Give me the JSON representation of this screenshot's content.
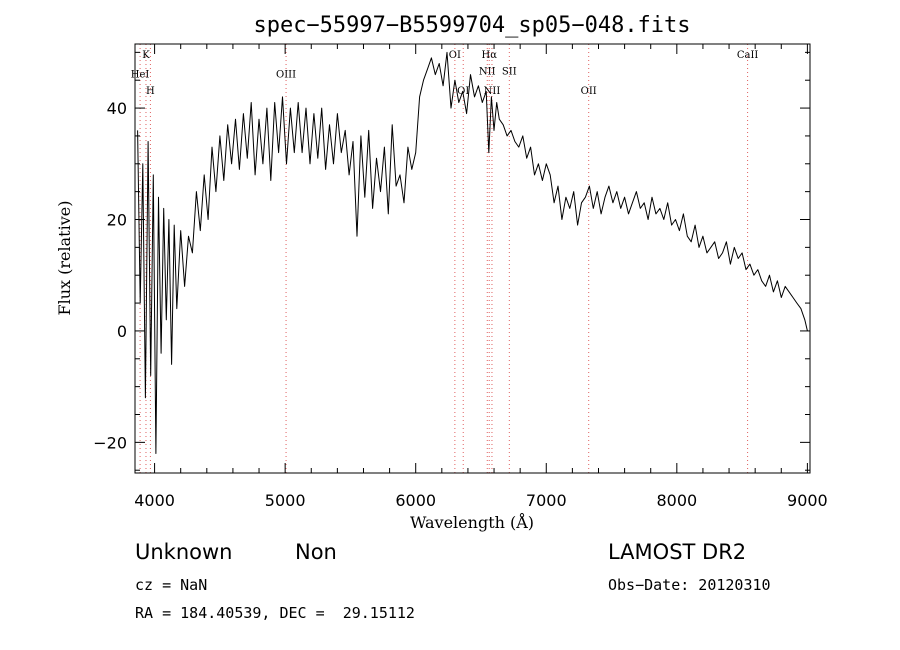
{
  "chart_data": {
    "type": "line",
    "title": "spec−55997−B5599704_sp05−048.fits",
    "xlabel": "Wavelength (Å)",
    "ylabel": "Flux (relative)",
    "xlim": [
      3850,
      9020
    ],
    "ylim": [
      -25.5,
      51.5
    ],
    "xticks": [
      4000,
      5000,
      6000,
      7000,
      8000,
      9000
    ],
    "xtick_labels": [
      "4000",
      "5000",
      "6000",
      "7000",
      "8000",
      "9000"
    ],
    "yticks": [
      -20,
      0,
      20,
      40
    ],
    "ytick_labels": [
      "−20",
      "0",
      "20",
      "40"
    ],
    "grid": false,
    "series": [
      {
        "x": [
          3870,
          3890,
          3910,
          3930,
          3950,
          3970,
          3990,
          4010,
          4030,
          4050,
          4070,
          4090,
          4110,
          4130,
          4150,
          4170,
          4200,
          4230,
          4260,
          4290,
          4320,
          4350,
          4380,
          4410,
          4440,
          4470,
          4500,
          4530,
          4560,
          4590,
          4620,
          4650,
          4680,
          4710,
          4740,
          4770,
          4800,
          4830,
          4860,
          4890,
          4920,
          4950,
          4980,
          5010,
          5040,
          5070,
          5100,
          5130,
          5160,
          5190,
          5220,
          5250,
          5280,
          5310,
          5340,
          5370,
          5400,
          5430,
          5460,
          5490,
          5520,
          5550,
          5580,
          5610,
          5640,
          5670,
          5700,
          5730,
          5760,
          5790,
          5820,
          5850,
          5880,
          5910,
          5940,
          5970,
          6000,
          6030,
          6060,
          6090,
          6120,
          6150,
          6180,
          6210,
          6240,
          6270,
          6300,
          6330,
          6360,
          6390,
          6420,
          6450,
          6480,
          6510,
          6540,
          6560,
          6580,
          6600,
          6620,
          6640,
          6670,
          6700,
          6730,
          6760,
          6790,
          6820,
          6850,
          6880,
          6910,
          6940,
          6970,
          7000,
          7030,
          7060,
          7090,
          7120,
          7150,
          7180,
          7210,
          7240,
          7270,
          7300,
          7330,
          7360,
          7390,
          7420,
          7450,
          7480,
          7510,
          7540,
          7570,
          7600,
          7630,
          7660,
          7690,
          7720,
          7750,
          7780,
          7810,
          7840,
          7870,
          7900,
          7930,
          7960,
          7990,
          8020,
          8050,
          8080,
          8110,
          8140,
          8170,
          8200,
          8230,
          8260,
          8290,
          8320,
          8350,
          8380,
          8410,
          8440,
          8470,
          8500,
          8530,
          8560,
          8590,
          8620,
          8650,
          8680,
          8710,
          8740,
          8770,
          8800,
          8830,
          8860,
          8890,
          8920,
          8950,
          8980,
          9000
        ],
        "y": [
          36,
          5,
          30,
          -12,
          34,
          -8,
          28,
          -22,
          24,
          -4,
          22,
          2,
          20,
          -6,
          19,
          4,
          18,
          8,
          17,
          14,
          25,
          18,
          28,
          20,
          33,
          25,
          35,
          27,
          37,
          30,
          38,
          29,
          39,
          31,
          41,
          28,
          38,
          30,
          40,
          27,
          41,
          32,
          42,
          30,
          40,
          32,
          41,
          32,
          40,
          30,
          39,
          31,
          40,
          29,
          37,
          30,
          39,
          32,
          36,
          28,
          34,
          17,
          35,
          24,
          36,
          22,
          31,
          25,
          33,
          21,
          37,
          26,
          28,
          23,
          33,
          29,
          32,
          42,
          45,
          47,
          49,
          46,
          48,
          44,
          50,
          40,
          45,
          41,
          43,
          39,
          46,
          42,
          44,
          41,
          43,
          32,
          42,
          36,
          41,
          38,
          37,
          35,
          36,
          34,
          33,
          35,
          31,
          33,
          28,
          30,
          27,
          30,
          28,
          23,
          26,
          20,
          24,
          22,
          25,
          19,
          23,
          24,
          26,
          22,
          25,
          21,
          24,
          26,
          23,
          25,
          22,
          24,
          21,
          23,
          25,
          22,
          23,
          20,
          24,
          21,
          22,
          20,
          23,
          19,
          20,
          18,
          21,
          17,
          16,
          19,
          15,
          17,
          14,
          15,
          16,
          13,
          14,
          16,
          12,
          15,
          13,
          14,
          11,
          12,
          10,
          11,
          9,
          8,
          10,
          7,
          9,
          6,
          8,
          7,
          6,
          5,
          4,
          2,
          0
        ]
      }
    ],
    "spectral_lines": [
      {
        "name": "K",
        "x": 3934,
        "label_y": 49
      },
      {
        "name": "HeI",
        "x": 3889,
        "label_y": 45.5
      },
      {
        "name": "H",
        "x": 3968,
        "label_y": 42.5
      },
      {
        "name": "OIII",
        "x": 5007,
        "label_y": 45.5
      },
      {
        "name": "OI",
        "x": 6300,
        "label_y": 49
      },
      {
        "name": "OI",
        "x": 6364,
        "label_y": 42.5
      },
      {
        "name": "Hα",
        "x": 6563,
        "label_y": 49
      },
      {
        "name": "NII",
        "x": 6548,
        "label_y": 46
      },
      {
        "name": "SII",
        "x": 6717,
        "label_y": 46
      },
      {
        "name": "NII",
        "x": 6584,
        "label_y": 42.5
      },
      {
        "name": "OII",
        "x": 7325,
        "label_y": 42.5
      },
      {
        "name": "CaII",
        "x": 8542,
        "label_y": 49
      }
    ]
  },
  "footer": {
    "class_label": "Unknown",
    "subclass_label": "Non",
    "survey": "LAMOST DR2",
    "redshift": "cz = NaN",
    "obs_date": "Obs−Date: 20120310",
    "coords": "RA = 184.40539, DEC =  29.15112"
  },
  "colors": {
    "line": "#000000",
    "marker_lines": "#e06060",
    "axes": "#000000"
  }
}
